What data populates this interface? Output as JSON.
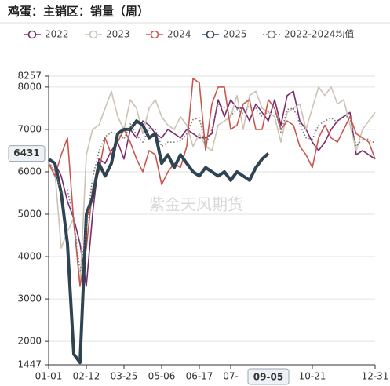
{
  "chart_data": {
    "type": "line",
    "title": "鸡蛋：主销区：销量（周）",
    "watermark": "紫金天风期货",
    "x": [
      0,
      1,
      2,
      3,
      4,
      5,
      6,
      7,
      8,
      9,
      10,
      11,
      12,
      13,
      14,
      15,
      16,
      17,
      18,
      19,
      20,
      21,
      22,
      23,
      24,
      25,
      26,
      27,
      28,
      29,
      30,
      31,
      32,
      33,
      34,
      35,
      36,
      37,
      38,
      39,
      40,
      41,
      42,
      43,
      44,
      45,
      46,
      47,
      48,
      49,
      50,
      51,
      52
    ],
    "xlim": [
      0,
      52
    ],
    "xticks": [
      {
        "value": 0,
        "label": "01-01"
      },
      {
        "value": 6,
        "label": "02-12"
      },
      {
        "value": 12,
        "label": "03-25"
      },
      {
        "value": 18,
        "label": "05-06"
      },
      {
        "value": 24,
        "label": "06-17"
      },
      {
        "value": 29,
        "label": "07-"
      },
      {
        "value": 42,
        "label": "10-21"
      },
      {
        "value": 52,
        "label": "12-31"
      }
    ],
    "ylim": [
      1447,
      8257
    ],
    "yticks": [
      1447,
      2000,
      3000,
      4000,
      5000,
      6000,
      7000,
      8000,
      8257
    ],
    "grid": true,
    "crosshair": {
      "x": 35,
      "x_label": "09-05",
      "y": 6431
    },
    "series": [
      {
        "name": "2022",
        "color": "#7b2c6e",
        "values": [
          6300,
          6200,
          5900,
          5300,
          4900,
          4300,
          3300,
          5000,
          6300,
          6200,
          6500,
          6700,
          6300,
          7000,
          6800,
          7200,
          7100,
          6900,
          6800,
          7000,
          6900,
          6800,
          7000,
          6900,
          6800,
          6800,
          6900,
          7700,
          7300,
          7700,
          7500,
          7500,
          7200,
          7600,
          7400,
          7200,
          7700,
          7100,
          7800,
          7900,
          7200,
          7000,
          6700,
          6500,
          6700,
          7000,
          7200,
          7300,
          7400,
          6400,
          6500,
          6400,
          6300
        ]
      },
      {
        "name": "2023",
        "color": "#cdc3b3",
        "values": [
          6200,
          6000,
          4200,
          4600,
          4900,
          3300,
          6400,
          7000,
          7100,
          7500,
          7900,
          7300,
          7000,
          7700,
          7500,
          6900,
          7500,
          7700,
          7300,
          7100,
          7000,
          7300,
          7100,
          6600,
          6900,
          6600,
          6500,
          7100,
          7200,
          7300,
          7800,
          7000,
          7800,
          7900,
          7500,
          7400,
          7300,
          6700,
          7400,
          7500,
          7600,
          7000,
          7500,
          8000,
          7800,
          8000,
          7600,
          7700,
          7100,
          6500,
          7000,
          7200,
          7400
        ]
      },
      {
        "name": "2024",
        "color": "#c9574d",
        "values": [
          6200,
          5900,
          6400,
          6800,
          4800,
          3300,
          4200,
          5600,
          6000,
          6800,
          6400,
          6700,
          7000,
          6700,
          6300,
          6000,
          6500,
          6400,
          5700,
          6000,
          6200,
          6100,
          6600,
          8200,
          8100,
          6500,
          7600,
          8000,
          8000,
          7000,
          7100,
          7600,
          7700,
          7000,
          7000,
          7700,
          7500,
          7000,
          7200,
          7100,
          6600,
          6400,
          6100,
          6800,
          7100,
          6800,
          6700,
          7000,
          7300,
          6900,
          6800,
          6700,
          6300
        ]
      },
      {
        "name": "2025",
        "color": "#2e4453",
        "line_width": 4,
        "values": [
          6300,
          6200,
          5500,
          4300,
          1700,
          1500,
          5000,
          5400,
          6200,
          5900,
          6200,
          6900,
          7000,
          7000,
          7200,
          7100,
          6800,
          6900,
          6200,
          6400,
          6100,
          6400,
          6200,
          6000,
          5900,
          6100,
          6000,
          5900,
          6000,
          5800,
          6000,
          5900,
          5800,
          6100,
          6300,
          6431,
          null,
          null,
          null,
          null,
          null,
          null,
          null,
          null,
          null,
          null,
          null,
          null,
          null,
          null,
          null,
          null,
          null
        ]
      },
      {
        "name": "2022-2024均值",
        "color": "#777777",
        "line_style": "dotted",
        "values": [
          6230,
          6030,
          5500,
          5570,
          4870,
          3630,
          4630,
          5870,
          6470,
          6830,
          6930,
          6900,
          6770,
          7130,
          6870,
          6700,
          7030,
          7000,
          6600,
          6700,
          6700,
          6730,
          6900,
          7230,
          7270,
          6630,
          7000,
          7600,
          7500,
          7330,
          7470,
          7370,
          7570,
          7500,
          7300,
          7430,
          7500,
          6930,
          7470,
          7500,
          7130,
          6800,
          6770,
          7100,
          7200,
          7270,
          7170,
          7330,
          7270,
          6600,
          6770,
          6770,
          6670
        ]
      }
    ]
  }
}
